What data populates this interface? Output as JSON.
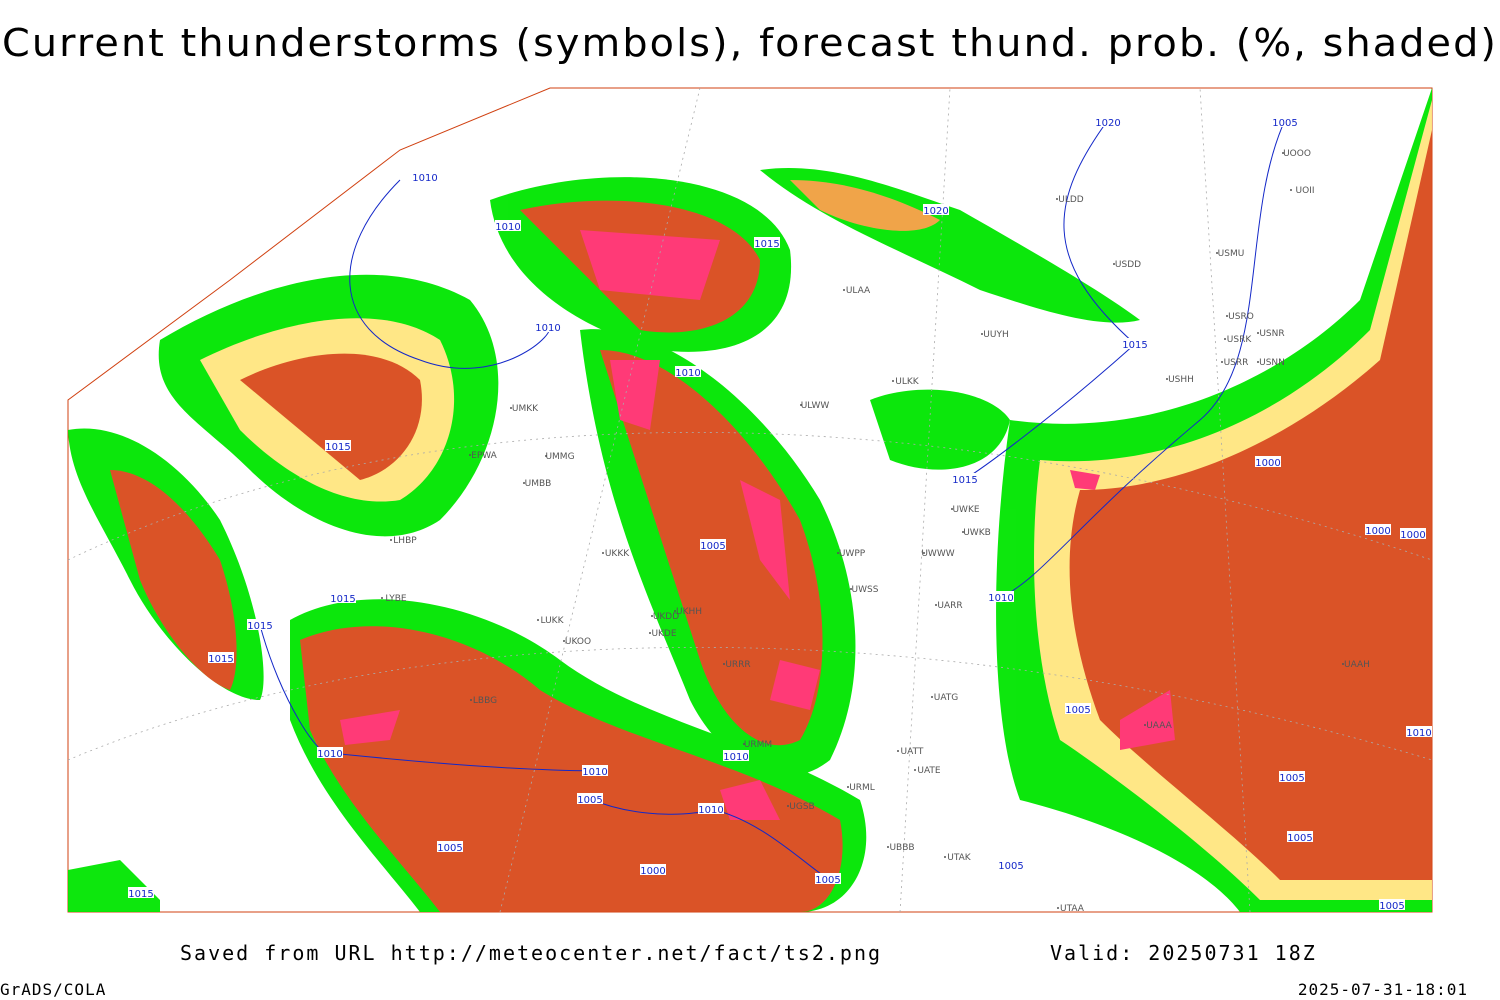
{
  "title": "Current thunderstorms (symbols), forecast thund. prob. (%, shaded)",
  "footer": {
    "saved_from": "Saved from URL http://meteocenter.net/fact/ts2.png",
    "valid": "Valid: 20250731 18Z",
    "credit": "GrADS/COLA",
    "timestamp": "2025-07-31-18:01"
  },
  "isobar_labels": [
    "1010",
    "1010",
    "1010",
    "1015",
    "1015",
    "1015",
    "1015",
    "1010",
    "1005",
    "1015",
    "1010",
    "1005",
    "1000",
    "1010",
    "1005",
    "1010",
    "1005",
    "1010",
    "1015",
    "1020",
    "1020",
    "1005",
    "1015",
    "1015",
    "1010",
    "1005",
    "1000",
    "1000",
    "1000",
    "1010",
    "1005",
    "1005",
    "1005",
    "1005"
  ],
  "station_labels": [
    "ULAA",
    "UUYH",
    "ULKK",
    "ULWW",
    "USDD",
    "USMU",
    "ULDD",
    "UOOO",
    "UOII",
    "USRO",
    "USRK",
    "USNR",
    "USRR",
    "USNN",
    "USHH",
    "UWWW",
    "UWKE",
    "UWKB",
    "UWPP",
    "UARR",
    "UWSS",
    "UATG",
    "UATE",
    "UATT",
    "UBBB",
    "UTAK",
    "UTAA",
    "UMKK",
    "UMMG",
    "UMBB",
    "UKKK",
    "UKHH",
    "UKDD",
    "UKDE",
    "UKOO",
    "LUKK",
    "URRR",
    "URMM",
    "UGSB",
    "URML",
    "UAAA",
    "UAAH",
    "LHBP",
    "LYBE",
    "LBBG",
    "EPWA"
  ]
}
